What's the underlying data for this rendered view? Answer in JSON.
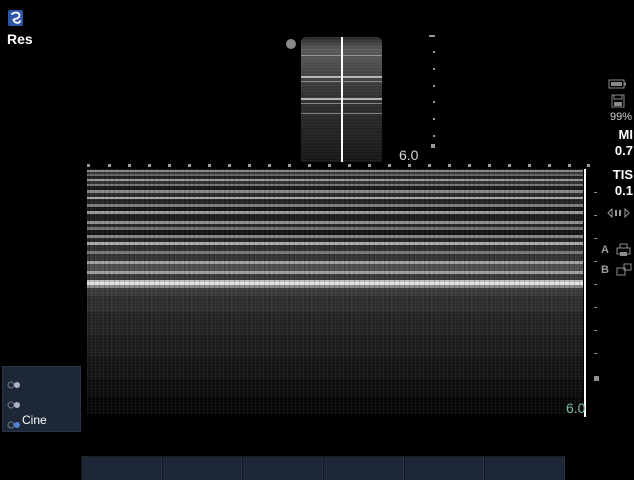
{
  "app": {
    "mode_label": "Res",
    "logo_icon": "swirl-logo-icon"
  },
  "b_mode": {
    "depth_label": "6.0"
  },
  "m_mode": {
    "depth_label": "6.0",
    "depth_label_color": "#7db8a0"
  },
  "status_panel": {
    "battery_icon": "battery-icon",
    "save_icon": "save-icon",
    "battery_percent": "99%",
    "mi_label": "MI",
    "mi_value": "0.7",
    "tis_label": "TIS",
    "tis_value": "0.1",
    "audio_icon": "audio-control-icon",
    "marker_a_label": "A",
    "marker_a_icon": "print-icon",
    "marker_b_label": "B",
    "marker_b_icon": "multi-window-icon"
  },
  "controls": {
    "cine_label": "Cine"
  },
  "softkeys": [
    "",
    "",
    "",
    "",
    "",
    ""
  ],
  "colors": {
    "accent": "#2f56a6",
    "panel": "#1e2738",
    "background": "#000000"
  }
}
